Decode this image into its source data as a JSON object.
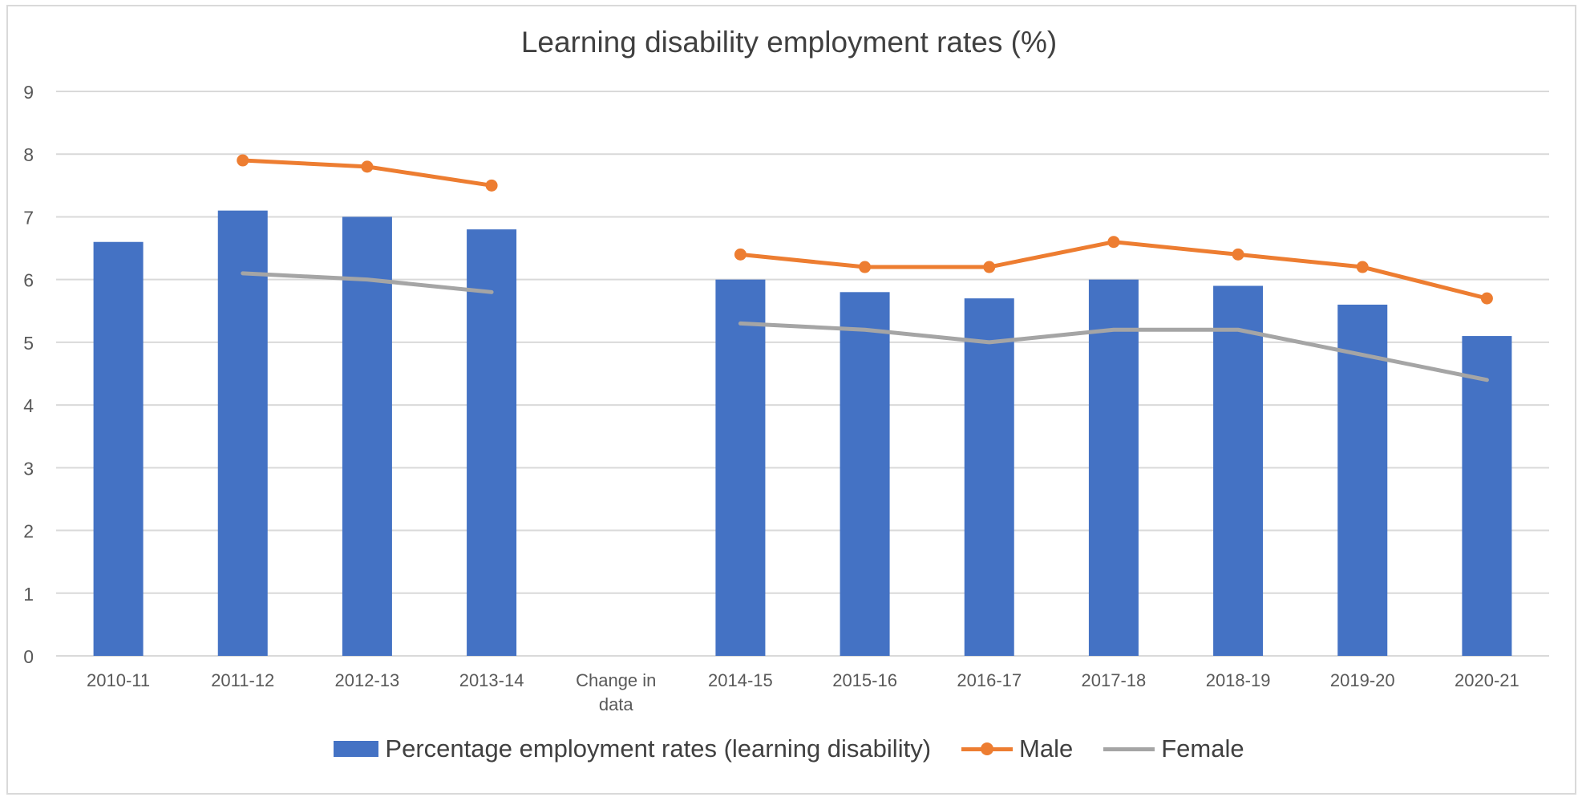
{
  "chart_data": {
    "type": "bar",
    "title": "Learning disability employment rates (%)",
    "xlabel": "",
    "ylabel": "",
    "ylim": [
      0,
      9
    ],
    "yticks": [
      "0",
      "1",
      "2",
      "3",
      "4",
      "5",
      "6",
      "7",
      "8",
      "9"
    ],
    "grid": true,
    "legend_position": "bottom",
    "categories": [
      "2010-11",
      "2011-12",
      "2012-13",
      "2013-14",
      "Change in data",
      "2014-15",
      "2015-16",
      "2016-17",
      "2017-18",
      "2018-19",
      "2019-20",
      "2020-21"
    ],
    "series": [
      {
        "name": "Percentage employment rates (learning disability)",
        "type": "bar",
        "color": "#4472c4",
        "values": [
          6.6,
          7.1,
          7.0,
          6.8,
          null,
          6.0,
          5.8,
          5.7,
          6.0,
          5.9,
          5.6,
          5.1
        ]
      },
      {
        "name": "Male",
        "type": "line",
        "markers": true,
        "color": "#ed7d31",
        "values": [
          null,
          7.9,
          7.8,
          7.5,
          null,
          6.4,
          6.2,
          6.2,
          6.6,
          6.4,
          6.2,
          5.7
        ]
      },
      {
        "name": "Female",
        "type": "line",
        "markers": false,
        "color": "#a5a5a5",
        "values": [
          null,
          6.1,
          6.0,
          5.8,
          null,
          5.3,
          5.2,
          5.0,
          5.2,
          5.2,
          4.8,
          4.4
        ]
      }
    ]
  }
}
